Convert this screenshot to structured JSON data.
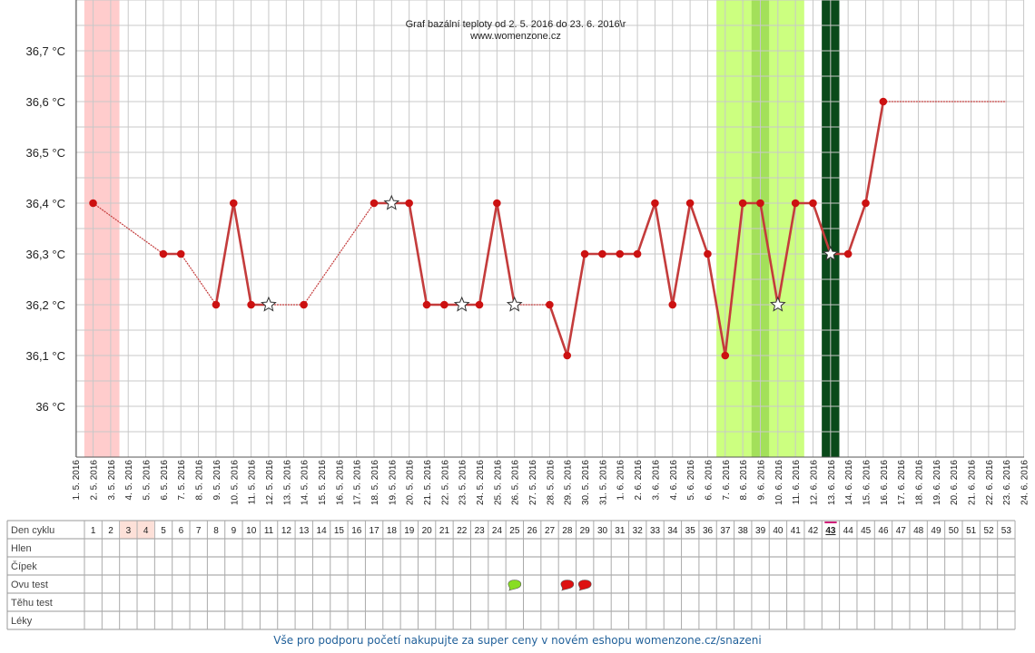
{
  "chart_data": {
    "type": "line",
    "title": "Graf bazální teploty od 2. 5. 2016 do 23. 6. 2016\\r",
    "subtitle": "www.womenzone.cz",
    "y_ticks": [
      "36 °C",
      "36,1 °C",
      "36,2 °C",
      "36,3 °C",
      "36,4 °C",
      "36,5 °C",
      "36,6 °C",
      "36,7 °C"
    ],
    "y_tick_values": [
      36.0,
      36.1,
      36.2,
      36.3,
      36.4,
      36.5,
      36.6,
      36.7
    ],
    "ylim": [
      35.9,
      36.8
    ],
    "grid": true,
    "x_labels": [
      "1. 5. 2016",
      "2. 5. 2016",
      "3. 5. 2016",
      "4. 5. 2016",
      "5. 5. 2016",
      "6. 5. 2016",
      "7. 5. 2016",
      "8. 5. 2016",
      "9. 5. 2016",
      "10. 5. 2016",
      "11. 5. 2016",
      "12. 5. 2016",
      "13. 5. 2016",
      "14. 5. 2016",
      "15. 5. 2016",
      "16. 5. 2016",
      "17. 5. 2016",
      "18. 5. 2016",
      "19. 5. 2016",
      "20. 5. 2016",
      "21. 5. 2016",
      "22. 5. 2016",
      "23. 5. 2016",
      "24. 5. 2016",
      "25. 5. 2016",
      "26. 5. 2016",
      "27. 5. 2016",
      "28. 5. 2016",
      "29. 5. 2016",
      "30. 5. 2016",
      "31. 5. 2016",
      "1. 6. 2016",
      "2. 6. 2016",
      "3. 6. 2016",
      "4. 6. 2016",
      "5. 6. 2016",
      "6. 6. 2016",
      "7. 6. 2016",
      "8. 6. 2016",
      "9. 6. 2016",
      "10. 6. 2016",
      "11. 6. 2016",
      "12. 6. 2016",
      "13. 6. 2016",
      "14. 6. 2016",
      "15. 6. 2016",
      "16. 6. 2016",
      "17. 6. 2016",
      "18. 6. 2016",
      "19. 6. 2016",
      "20. 6. 2016",
      "21. 6. 2016",
      "22. 6. 2016",
      "23. 6. 2016",
      "24. 6. 2016"
    ],
    "series": [
      {
        "cycle_day": [
          1,
          5,
          6,
          8,
          9,
          10,
          11,
          13,
          17,
          18,
          19,
          20,
          21,
          22,
          23,
          24,
          25,
          27,
          28,
          29,
          30,
          31,
          32,
          33,
          34,
          35,
          36,
          37,
          38,
          39,
          40,
          41,
          42,
          43,
          44,
          45,
          46,
          53
        ],
        "values": [
          36.4,
          36.3,
          36.3,
          36.2,
          36.4,
          36.2,
          36.2,
          36.2,
          36.4,
          36.4,
          36.4,
          36.2,
          36.2,
          36.2,
          36.2,
          36.4,
          36.2,
          36.2,
          36.1,
          36.3,
          36.3,
          36.3,
          36.3,
          36.4,
          36.2,
          36.4,
          36.3,
          36.1,
          36.4,
          36.4,
          36.2,
          36.4,
          36.4,
          36.3,
          36.3,
          36.4,
          36.6,
          36.6
        ],
        "star_days": [
          11,
          18,
          22,
          25,
          40,
          43
        ],
        "dotted_after_days": [
          1,
          6,
          11,
          13,
          25,
          46
        ],
        "color": "#c43c3c"
      }
    ],
    "bands": [
      {
        "from_day": 1,
        "to_day": 2,
        "color": "#ffcccc"
      },
      {
        "from_day": 37,
        "to_day": 41,
        "color": "#ccff80"
      },
      {
        "from_day": 39,
        "to_day": 39,
        "color": "#a3e05a"
      },
      {
        "from_day": 43,
        "to_day": 43,
        "color": "#0a4a1a"
      }
    ],
    "colors": {
      "grid": "#c8c8c8",
      "line": "#c43c3c",
      "point": "#cc1111",
      "period_cell": "#fde0d8",
      "today_marker": "#d0207a"
    }
  },
  "cycle_table": {
    "row_labels": [
      "Den cyklu",
      "Hlen",
      "Čípek",
      "Ovu test",
      "Těhu test",
      "Léky"
    ],
    "days": [
      "1",
      "2",
      "3",
      "4",
      "5",
      "6",
      "7",
      "8",
      "9",
      "10",
      "11",
      "12",
      "13",
      "14",
      "15",
      "16",
      "17",
      "18",
      "19",
      "20",
      "21",
      "22",
      "23",
      "24",
      "25",
      "26",
      "27",
      "28",
      "29",
      "30",
      "31",
      "32",
      "33",
      "34",
      "35",
      "36",
      "37",
      "38",
      "39",
      "40",
      "41",
      "42",
      "43",
      "44",
      "45",
      "46",
      "47",
      "48",
      "49",
      "50",
      "51",
      "52",
      "53"
    ],
    "period_days": [
      3,
      4
    ],
    "today_day": 43,
    "ovu_tests": [
      {
        "day": 25,
        "result": "positive",
        "color": "#88dd22"
      },
      {
        "day": 28,
        "result": "negative",
        "color": "#dd1111"
      },
      {
        "day": 29,
        "result": "negative",
        "color": "#dd1111"
      }
    ]
  },
  "footer": {
    "text": "Vše pro podporu početí nakupujte za super ceny v novém eshopu womenzone.cz/snazeni"
  }
}
